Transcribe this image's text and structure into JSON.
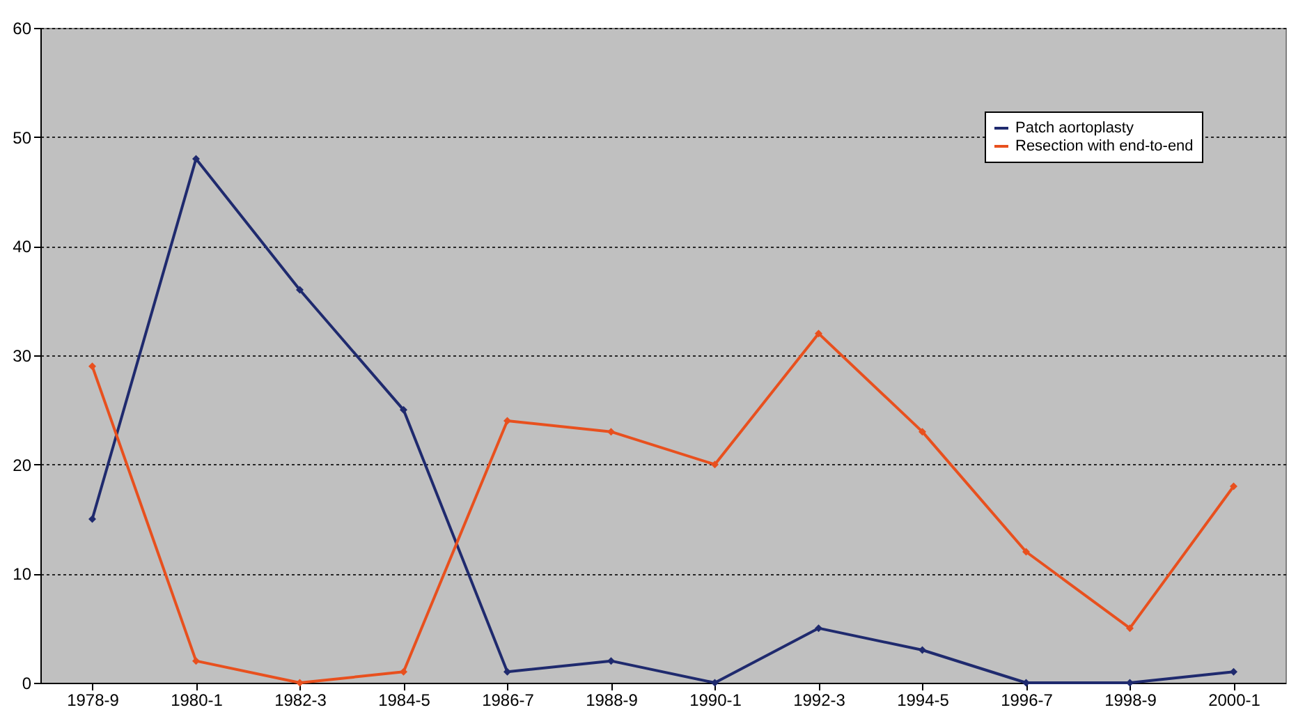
{
  "chart_data": {
    "type": "line",
    "categories": [
      "1978-9",
      "1980-1",
      "1982-3",
      "1984-5",
      "1986-7",
      "1988-9",
      "1990-1",
      "1992-3",
      "1994-5",
      "1996-7",
      "1998-9",
      "2000-1"
    ],
    "series": [
      {
        "name": "Patch aortoplasty",
        "color": "#1f2a6e",
        "values": [
          15,
          48,
          36,
          25,
          1,
          2,
          0,
          5,
          3,
          0,
          0,
          1
        ]
      },
      {
        "name": "Resection with end-to-end",
        "color": "#e8501e",
        "values": [
          29,
          2,
          0,
          1,
          24,
          23,
          20,
          32,
          23,
          12,
          5,
          18
        ]
      }
    ],
    "ylim": [
      0,
      60
    ],
    "yticks": [
      0,
      10,
      20,
      30,
      40,
      50,
      60
    ],
    "grid": "y",
    "legend": "top right",
    "marker": "diamond",
    "line_style": "solid"
  }
}
